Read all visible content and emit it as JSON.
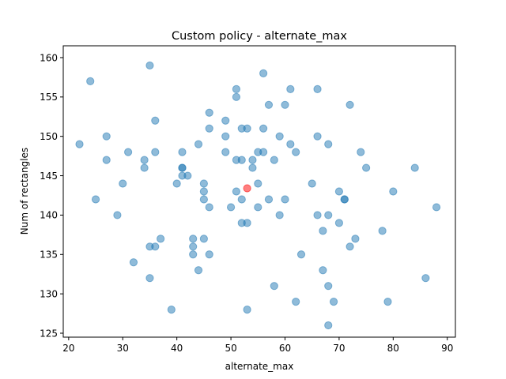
{
  "chart_data": {
    "type": "scatter",
    "title": "Custom policy - alternate_max",
    "xlabel": "alternate_max",
    "ylabel": "Num of rectangles",
    "xlim": [
      19,
      91.5
    ],
    "ylim": [
      124.5,
      161.5
    ],
    "xticks": [
      20,
      30,
      40,
      50,
      60,
      70,
      80,
      90
    ],
    "yticks": [
      125,
      130,
      135,
      140,
      145,
      150,
      155,
      160
    ],
    "grid": false,
    "point_color": "#1f77b4",
    "highlight_color": "#ff0000",
    "series": [
      {
        "points": [
          [
            35,
            159
          ],
          [
            24,
            157
          ],
          [
            56,
            158
          ],
          [
            51,
            156
          ],
          [
            61,
            156
          ],
          [
            66,
            156
          ],
          [
            51,
            155
          ],
          [
            57,
            154
          ],
          [
            60,
            154
          ],
          [
            72,
            154
          ],
          [
            46,
            153
          ],
          [
            36,
            152
          ],
          [
            49,
            152
          ],
          [
            46,
            151
          ],
          [
            52,
            151
          ],
          [
            53,
            151
          ],
          [
            56,
            151
          ],
          [
            27,
            150
          ],
          [
            49,
            150
          ],
          [
            59,
            150
          ],
          [
            66,
            150
          ],
          [
            22,
            149
          ],
          [
            44,
            149
          ],
          [
            61,
            149
          ],
          [
            68,
            149
          ],
          [
            31,
            148
          ],
          [
            36,
            148
          ],
          [
            41,
            148
          ],
          [
            49,
            148
          ],
          [
            55,
            148
          ],
          [
            56,
            148
          ],
          [
            62,
            148
          ],
          [
            74,
            148
          ],
          [
            27,
            147
          ],
          [
            34,
            147
          ],
          [
            51,
            147
          ],
          [
            52,
            147
          ],
          [
            54,
            147
          ],
          [
            58,
            147
          ],
          [
            34,
            146
          ],
          [
            41,
            146
          ],
          [
            41,
            146
          ],
          [
            54,
            146
          ],
          [
            75,
            146
          ],
          [
            84,
            146
          ],
          [
            41,
            145
          ],
          [
            42,
            145
          ],
          [
            30,
            144
          ],
          [
            40,
            144
          ],
          [
            45,
            144
          ],
          [
            55,
            144
          ],
          [
            65,
            144
          ],
          [
            45,
            143
          ],
          [
            51,
            143
          ],
          [
            70,
            143
          ],
          [
            80,
            143
          ],
          [
            25,
            142
          ],
          [
            45,
            142
          ],
          [
            52,
            142
          ],
          [
            57,
            142
          ],
          [
            60,
            142
          ],
          [
            71,
            142
          ],
          [
            71,
            142
          ],
          [
            46,
            141
          ],
          [
            50,
            141
          ],
          [
            55,
            141
          ],
          [
            88,
            141
          ],
          [
            29,
            140
          ],
          [
            59,
            140
          ],
          [
            66,
            140
          ],
          [
            68,
            140
          ],
          [
            52,
            139
          ],
          [
            53,
            139
          ],
          [
            70,
            139
          ],
          [
            67,
            138
          ],
          [
            78,
            138
          ],
          [
            37,
            137
          ],
          [
            43,
            137
          ],
          [
            45,
            137
          ],
          [
            73,
            137
          ],
          [
            35,
            136
          ],
          [
            36,
            136
          ],
          [
            43,
            136
          ],
          [
            72,
            136
          ],
          [
            43,
            135
          ],
          [
            46,
            135
          ],
          [
            63,
            135
          ],
          [
            32,
            134
          ],
          [
            44,
            133
          ],
          [
            67,
            133
          ],
          [
            35,
            132
          ],
          [
            86,
            132
          ],
          [
            58,
            131
          ],
          [
            68,
            131
          ],
          [
            62,
            129
          ],
          [
            69,
            129
          ],
          [
            79,
            129
          ],
          [
            39,
            128
          ],
          [
            53,
            128
          ],
          [
            68,
            126
          ]
        ]
      },
      {
        "points": [
          [
            53,
            143.4
          ]
        ]
      }
    ]
  }
}
